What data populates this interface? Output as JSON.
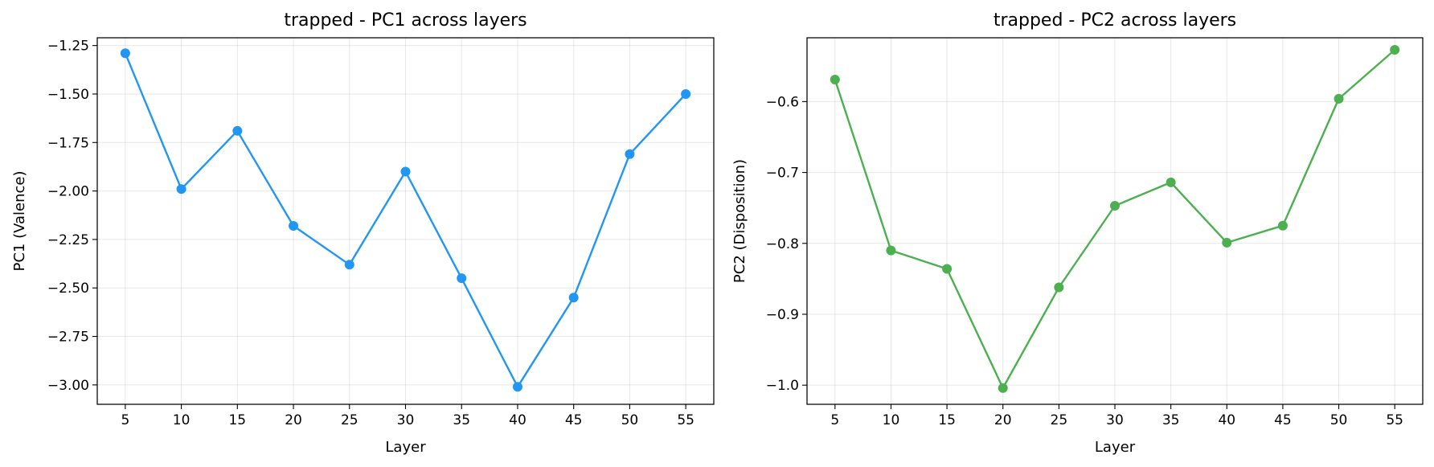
{
  "chart_data": [
    {
      "type": "line",
      "title": "trapped - PC1 across layers",
      "xlabel": "Layer",
      "ylabel": "PC1 (Valence)",
      "x": [
        5,
        10,
        15,
        20,
        25,
        30,
        35,
        40,
        45,
        50,
        55
      ],
      "series": [
        {
          "values": [
            -1.29,
            -1.99,
            -1.69,
            -2.18,
            -2.38,
            -1.9,
            -2.45,
            -3.01,
            -2.55,
            -1.81,
            -1.5
          ],
          "color": "#2196f3",
          "marker": "circle"
        }
      ],
      "xticks": [
        5,
        10,
        15,
        20,
        25,
        30,
        35,
        40,
        45,
        50,
        55
      ],
      "yticks": [
        -1.25,
        -1.5,
        -1.75,
        -2.0,
        -2.25,
        -2.5,
        -2.75,
        -3.0
      ],
      "ytick_labels": [
        "−1.25",
        "−1.50",
        "−1.75",
        "−2.00",
        "−2.25",
        "−2.50",
        "−2.75",
        "−3.00"
      ],
      "xlim": [
        2.5,
        57.5
      ],
      "ylim": [
        -3.1,
        -1.21
      ],
      "grid": true
    },
    {
      "type": "line",
      "title": "trapped - PC2 across layers",
      "xlabel": "Layer",
      "ylabel": "PC2 (Disposition)",
      "x": [
        5,
        10,
        15,
        20,
        25,
        30,
        35,
        40,
        45,
        50,
        55
      ],
      "series": [
        {
          "values": [
            -0.569,
            -0.81,
            -0.836,
            -1.004,
            -0.862,
            -0.747,
            -0.714,
            -0.799,
            -0.775,
            -0.596,
            -0.527
          ],
          "color": "#4caf50",
          "marker": "circle"
        }
      ],
      "xticks": [
        5,
        10,
        15,
        20,
        25,
        30,
        35,
        40,
        45,
        50,
        55
      ],
      "yticks": [
        -0.6,
        -0.7,
        -0.8,
        -0.9,
        -1.0
      ],
      "ytick_labels": [
        "−0.6",
        "−0.7",
        "−0.8",
        "−0.9",
        "−1.0"
      ],
      "xlim": [
        2.5,
        57.5
      ],
      "ylim": [
        -1.027,
        -0.51
      ],
      "grid": true
    }
  ]
}
